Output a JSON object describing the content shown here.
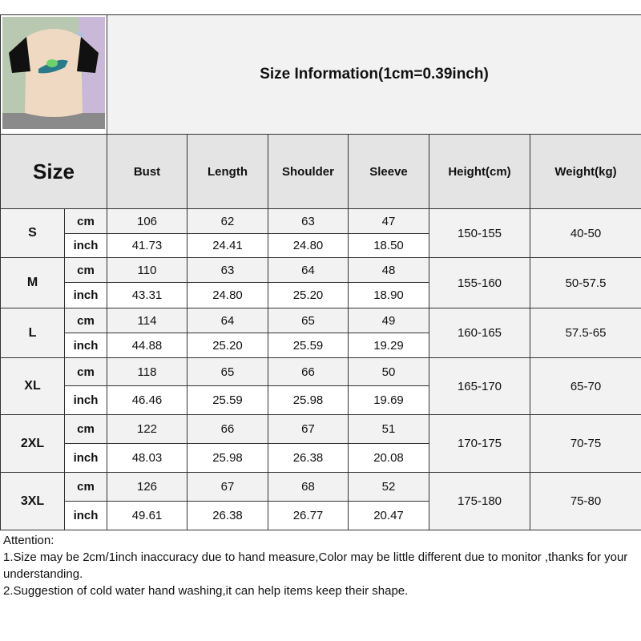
{
  "title": "Size Information(1cm=0.39inch)",
  "headers": {
    "size": "Size",
    "bust": "Bust",
    "length": "Length",
    "shoulder": "Shoulder",
    "sleeve": "Sleeve",
    "height": "Height(cm)",
    "weight": "Weight(kg)"
  },
  "units": {
    "cm": "cm",
    "inch": "inch"
  },
  "rows": [
    {
      "size": "S",
      "cm": [
        "106",
        "62",
        "63",
        "47"
      ],
      "inch": [
        "41.73",
        "24.41",
        "24.80",
        "18.50"
      ],
      "height": "150-155",
      "weight": "40-50"
    },
    {
      "size": "M",
      "cm": [
        "110",
        "63",
        "64",
        "48"
      ],
      "inch": [
        "43.31",
        "24.80",
        "25.20",
        "18.90"
      ],
      "height": "155-160",
      "weight": "50-57.5"
    },
    {
      "size": "L",
      "cm": [
        "114",
        "64",
        "65",
        "49"
      ],
      "inch": [
        "44.88",
        "25.20",
        "25.59",
        "19.29"
      ],
      "height": "160-165",
      "weight": "57.5-65"
    },
    {
      "size": "XL",
      "cm": [
        "118",
        "65",
        "66",
        "50"
      ],
      "inch": [
        "46.46",
        "25.59",
        "25.98",
        "19.69"
      ],
      "height": "165-170",
      "weight": "65-70"
    },
    {
      "size": "2XL",
      "cm": [
        "122",
        "66",
        "67",
        "51"
      ],
      "inch": [
        "48.03",
        "25.98",
        "26.38",
        "20.08"
      ],
      "height": "170-175",
      "weight": "70-75"
    },
    {
      "size": "3XL",
      "cm": [
        "126",
        "67",
        "68",
        "52"
      ],
      "inch": [
        "49.61",
        "26.38",
        "26.77",
        "20.47"
      ],
      "height": "175-180",
      "weight": "75-80"
    }
  ],
  "attention": {
    "heading": "Attention:",
    "line1": "1.Size may be 2cm/1inch inaccuracy due to hand measure,Color may be little different due to monitor ,thanks for your understanding.",
    "line2": "2.Suggestion of cold water hand washing,it can help items keep their shape."
  }
}
